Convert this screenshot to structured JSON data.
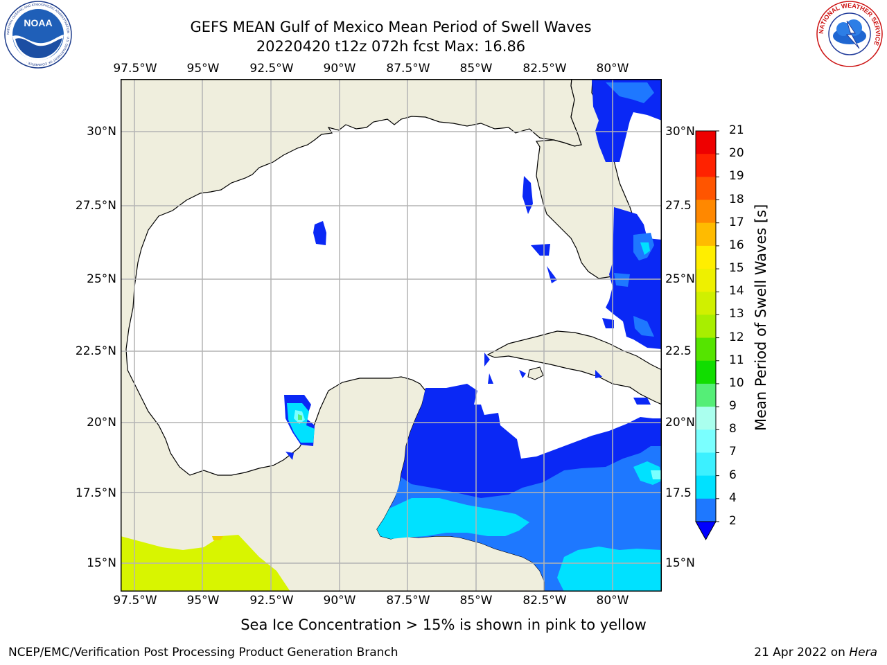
{
  "title": {
    "line1": "GEFS MEAN Gulf of Mexico Mean Period of Swell Waves",
    "line2": "20220420 t12z 072h fcst   Max: 16.86"
  },
  "map": {
    "lon_ticks": [
      "97.5°W",
      "95°W",
      "92.5°W",
      "90°W",
      "87.5°W",
      "85°W",
      "82.5°W",
      "80°W"
    ],
    "lat_ticks_left": [
      "30°N",
      "27.5°N",
      "25°N",
      "22.5°N",
      "20°N",
      "17.5°N",
      "15°N"
    ],
    "lat_ticks_right": [
      "30°N",
      "27.5",
      "25°N",
      "22.5",
      "20°N",
      "17.5",
      "15°N"
    ],
    "extent": {
      "lon": [
        -98.0,
        -78.0
      ],
      "lat": [
        14.0,
        32.0
      ]
    },
    "land_color": "#efeedd",
    "ocean_color": "#ffffff",
    "grid": true
  },
  "colorbar": {
    "label": "Mean Period of Swell Waves [s]",
    "ticks": [
      "2",
      "4",
      "6",
      "7",
      "8",
      "9",
      "10",
      "11",
      "12",
      "13",
      "14",
      "15",
      "16",
      "17",
      "18",
      "19",
      "20",
      "21"
    ],
    "colors": [
      "#0a28f5",
      "#1e78ff",
      "#00e1ff",
      "#3cf0ff",
      "#7affff",
      "#aaffee",
      "#55ee77",
      "#11dd00",
      "#55e400",
      "#a8ee00",
      "#d0f000",
      "#eef000",
      "#ffee00",
      "#ffbb00",
      "#ff8800",
      "#ff5500",
      "#ff2200",
      "#ee0000"
    ],
    "extend_color": "#0000ff"
  },
  "note": "Sea Ice Concentration > 15% is shown in pink to yellow",
  "footer": {
    "left": "NCEP/EMC/Verification Post Processing Product Generation Branch",
    "date": "21 Apr 2022 on",
    "host": "Hera"
  },
  "logos": {
    "noaa_text": "NOAA",
    "noaa_ring": "NATIONAL OCEANIC AND ATMOSPHERIC ADMINISTRATION · U.S. DEPARTMENT OF COMMERCE ·",
    "nws_ring": "NATIONAL WEATHER SERVICE"
  }
}
